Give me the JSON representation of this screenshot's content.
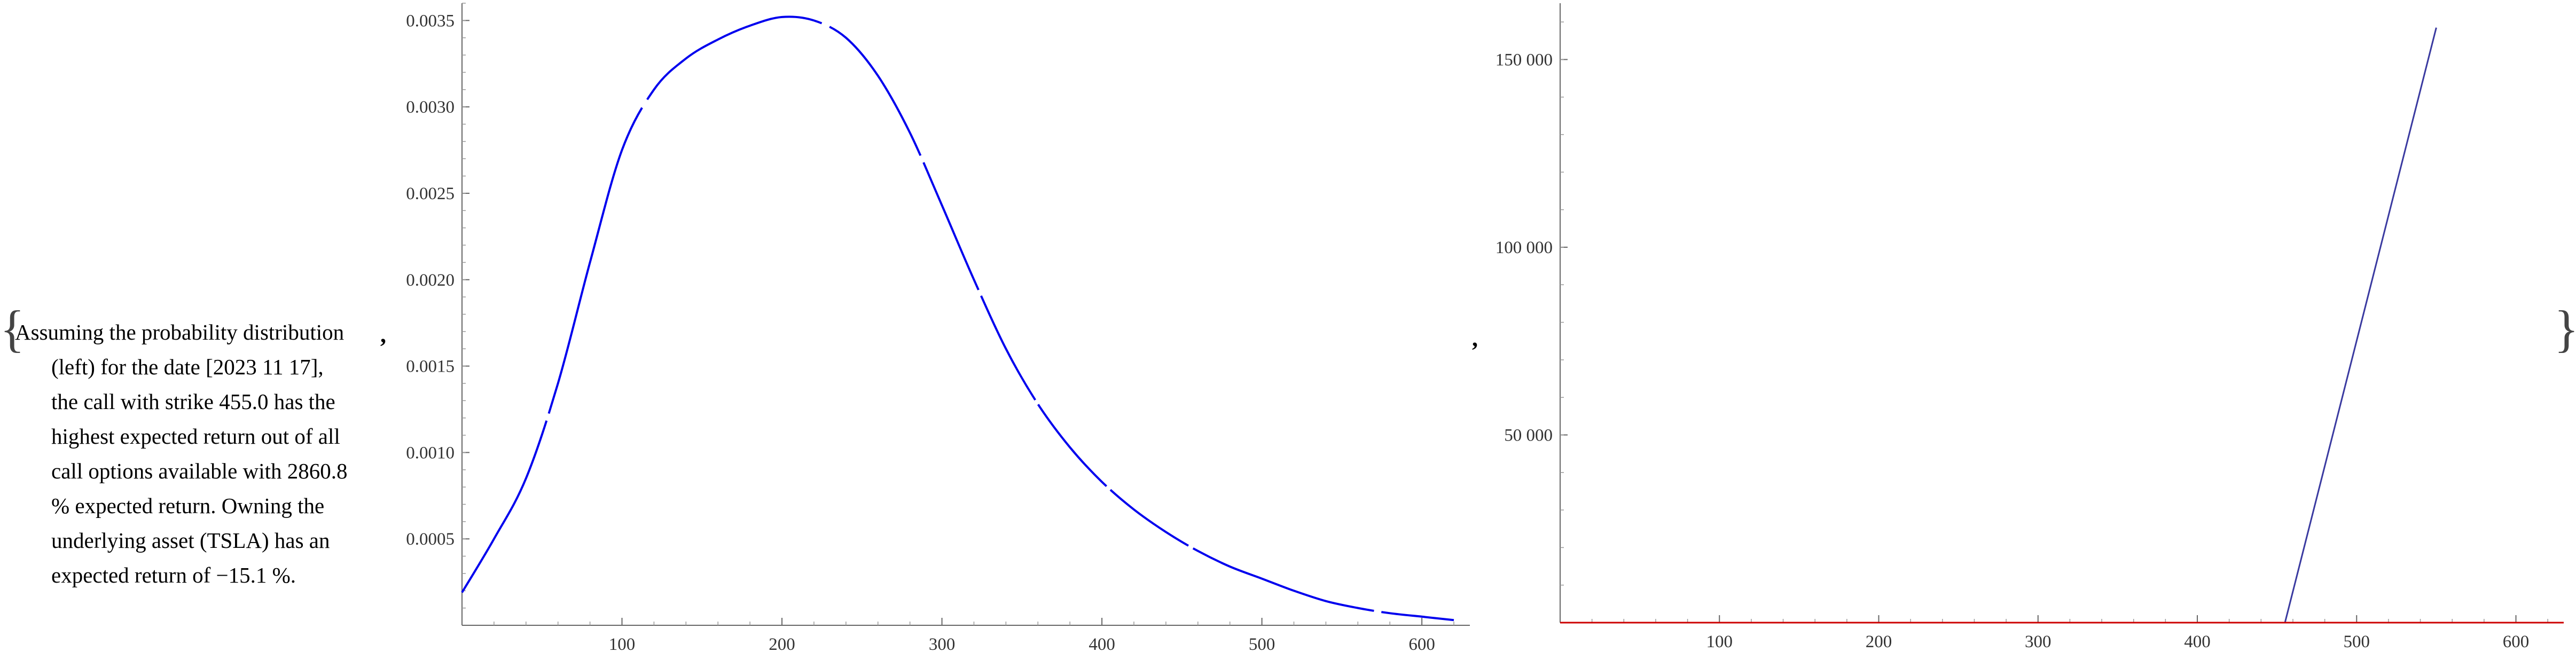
{
  "caption": {
    "lines": [
      "Assuming the probability distribution",
      "(left) for the date [2023 11 17],",
      "the call with strike 455.0 has the",
      "highest expected return out of all",
      "call options available with 2860.8",
      "% expected return. Owning the",
      "underlying asset (TSLA) has an",
      "expected return of −15.1 %."
    ],
    "open_brace": "{",
    "close_brace": "}",
    "separator": ","
  },
  "colors": {
    "density_line": "#0000ee",
    "payoff_line": "#3a3aa0",
    "baseline_line": "#cc0000",
    "axis": "#666666"
  },
  "chart_data": [
    {
      "type": "line",
      "title": "",
      "xlabel": "",
      "ylabel": "",
      "xlim": [
        0,
        630
      ],
      "ylim": [
        0,
        0.0036
      ],
      "x_ticks": [
        "100",
        "200",
        "300",
        "400",
        "500",
        "600"
      ],
      "y_ticks": [
        "0.0005",
        "0.0010",
        "0.0015",
        "0.0020",
        "0.0025",
        "0.0030",
        "0.0035"
      ],
      "grid": false,
      "series": [
        {
          "x": [
            0,
            20,
            40,
            60,
            80,
            100,
            120,
            140,
            160,
            180,
            200,
            220,
            240,
            260,
            280,
            300,
            320,
            340,
            360,
            380,
            400,
            420,
            440,
            460,
            480,
            500,
            520,
            540,
            560,
            580,
            600,
            620
          ],
          "y": [
            0.00019,
            0.0005,
            0.00085,
            0.0014,
            0.0021,
            0.00275,
            0.0031,
            0.00328,
            0.00339,
            0.00347,
            0.00352,
            0.0035,
            0.0034,
            0.00318,
            0.00285,
            0.00243,
            0.002,
            0.0016,
            0.00128,
            0.00103,
            0.00083,
            0.00067,
            0.00054,
            0.00043,
            0.00034,
            0.00027,
            0.0002,
            0.00014,
            0.0001,
            7e-05,
            5e-05,
            3e-05
          ]
        }
      ]
    },
    {
      "type": "line",
      "title": "",
      "xlabel": "",
      "ylabel": "",
      "xlim": [
        0,
        630
      ],
      "ylim": [
        0,
        165000
      ],
      "x_ticks": [
        "100",
        "200",
        "300",
        "400",
        "500",
        "600"
      ],
      "y_ticks": [
        "50 000",
        "100 000",
        "150 000"
      ],
      "grid": false,
      "series": [
        {
          "x": [
            0,
            455,
            550
          ],
          "y": [
            0,
            0,
            158500
          ]
        },
        {
          "x": [
            0,
            630
          ],
          "y": [
            0,
            0
          ]
        }
      ]
    }
  ]
}
